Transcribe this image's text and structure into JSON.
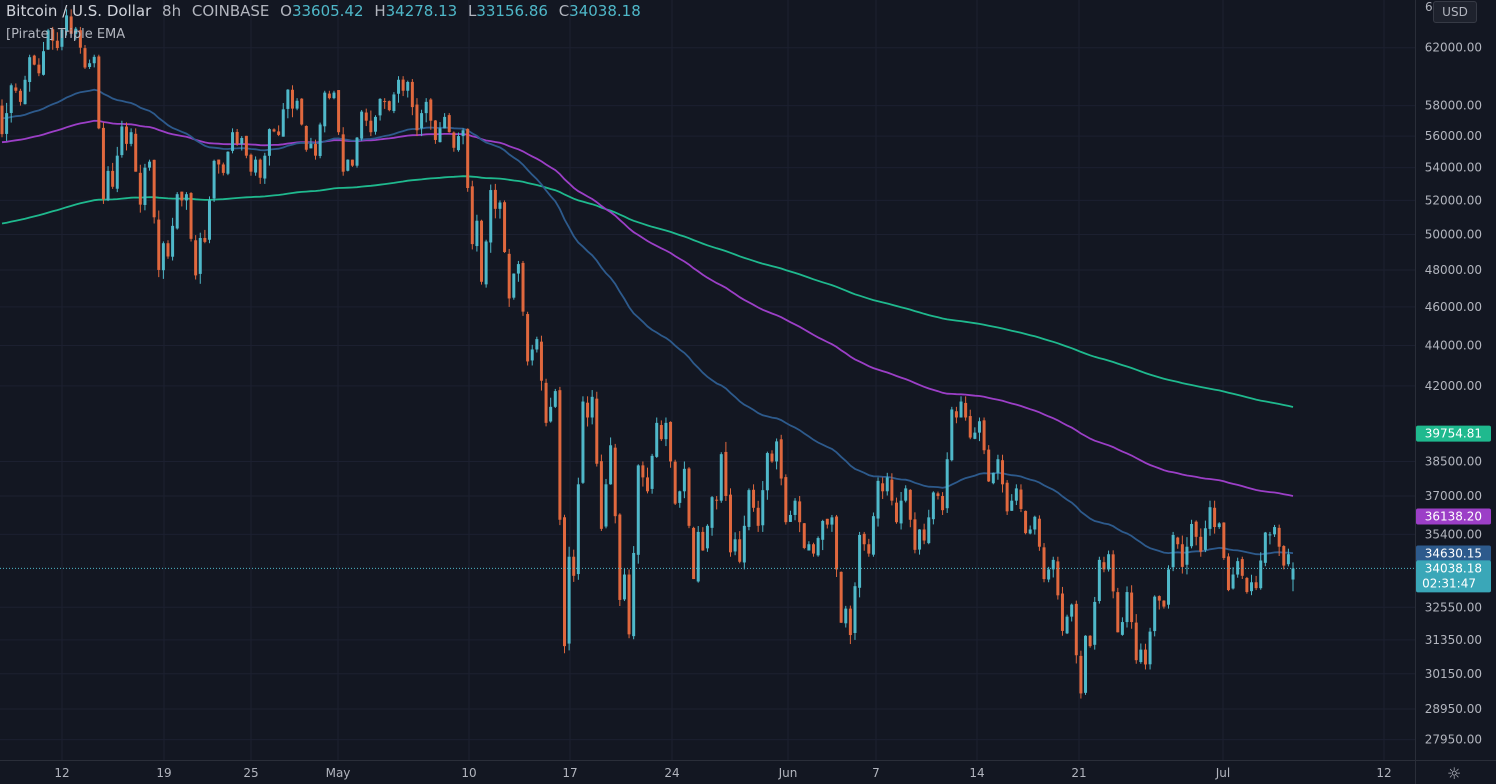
{
  "header": {
    "symbol": "Bitcoin / U.S. Dollar",
    "interval": "8h",
    "exchange": "COINBASE",
    "open_label": "O",
    "open": "33605.42",
    "high_label": "H",
    "high": "34278.13",
    "low_label": "L",
    "low": "33156.86",
    "close_label": "C",
    "close": "34038.18"
  },
  "indicator": {
    "name": "[Pirate] Triple EMA"
  },
  "currency_button": "USD",
  "top_right_label": "6",
  "colors": {
    "background": "#131722",
    "up": "#4fb8c9",
    "down": "#e0683e",
    "ema_fast": "#2d5a8c",
    "ema_mid": "#9c3fc7",
    "ema_slow": "#1fb98e",
    "grid": "#1c2030",
    "text": "#b2b5be"
  },
  "chart_data": {
    "type": "candlestick",
    "yscale": "log",
    "ylim": [
      27300,
      65500
    ],
    "y_ticks": [
      "62000.00",
      "58000.00",
      "56000.00",
      "54000.00",
      "52000.00",
      "50000.00",
      "48000.00",
      "46000.00",
      "44000.00",
      "42000.00",
      "38500.00",
      "37000.00",
      "35400.00",
      "32550.00",
      "31350.00",
      "30150.00",
      "28950.00",
      "27950.00"
    ],
    "x_ticks": [
      "12",
      "19",
      "25",
      "May",
      "10",
      "17",
      "24",
      "Jun",
      "7",
      "14",
      "21",
      "Jul",
      "12"
    ],
    "guide_ohlc": [
      [
        58000,
        59500,
        55500,
        59000
      ],
      [
        59000,
        61500,
        58000,
        60800
      ],
      [
        60800,
        63500,
        60000,
        62500
      ],
      [
        62500,
        64800,
        61800,
        63000
      ],
      [
        63000,
        63500,
        60500,
        60900
      ],
      [
        60900,
        61500,
        51500,
        53800
      ],
      [
        53800,
        57000,
        52500,
        55500
      ],
      [
        55500,
        56500,
        51000,
        54000
      ],
      [
        54000,
        54500,
        47500,
        49500
      ],
      [
        49500,
        52500,
        48500,
        52000
      ],
      [
        52000,
        52500,
        47000,
        49800
      ],
      [
        49800,
        54500,
        49500,
        54200
      ],
      [
        54200,
        56500,
        53500,
        55500
      ],
      [
        55500,
        56000,
        53500,
        54500
      ],
      [
        54500,
        56500,
        53000,
        56300
      ],
      [
        56300,
        59500,
        56000,
        57800
      ],
      [
        57800,
        58500,
        55000,
        55500
      ],
      [
        55500,
        59000,
        54500,
        58500
      ],
      [
        58500,
        59000,
        53500,
        54500
      ],
      [
        54500,
        57800,
        54000,
        57000
      ],
      [
        57000,
        58500,
        56000,
        58300
      ],
      [
        58300,
        60000,
        57500,
        59000
      ],
      [
        59000,
        59800,
        56000,
        57500
      ],
      [
        57500,
        58500,
        55500,
        56500
      ],
      [
        56500,
        57500,
        55000,
        56000
      ],
      [
        56000,
        56500,
        49000,
        50800
      ],
      [
        50800,
        53000,
        46200,
        51500
      ],
      [
        51500,
        52000,
        46000,
        47800
      ],
      [
        47800,
        48500,
        43000,
        43800
      ],
      [
        43800,
        44500,
        40000,
        41000
      ],
      [
        41000,
        42000,
        30000,
        34500
      ],
      [
        34500,
        41500,
        33500,
        40500
      ],
      [
        40500,
        41800,
        35000,
        37500
      ],
      [
        37500,
        39800,
        32500,
        33800
      ],
      [
        33800,
        38500,
        30800,
        37800
      ],
      [
        37800,
        40500,
        37000,
        39500
      ],
      [
        39500,
        40500,
        36500,
        37200
      ],
      [
        37200,
        38500,
        33000,
        35500
      ],
      [
        35500,
        37000,
        34500,
        36800
      ],
      [
        36800,
        39500,
        34500,
        35200
      ],
      [
        35200,
        37500,
        34000,
        36500
      ],
      [
        36500,
        39000,
        35500,
        38500
      ],
      [
        38500,
        39700,
        35800,
        36200
      ],
      [
        36200,
        37000,
        34800,
        35000
      ],
      [
        35000,
        36000,
        34500,
        35800
      ],
      [
        35800,
        36200,
        31800,
        32500
      ],
      [
        32500,
        35500,
        31200,
        35000
      ],
      [
        35000,
        37800,
        34500,
        37200
      ],
      [
        37200,
        38000,
        35600,
        36800
      ],
      [
        36800,
        37500,
        34500,
        35600
      ],
      [
        35600,
        37200,
        35000,
        37000
      ],
      [
        37000,
        41000,
        36200,
        40500
      ],
      [
        40500,
        41500,
        39500,
        39800
      ],
      [
        39800,
        40500,
        37500,
        38000
      ],
      [
        38000,
        38800,
        36200,
        36800
      ],
      [
        36800,
        37500,
        35400,
        35600
      ],
      [
        35600,
        36300,
        33500,
        34000
      ],
      [
        34000,
        34500,
        31500,
        32200
      ],
      [
        32200,
        32800,
        28800,
        31500
      ],
      [
        31500,
        34500,
        31000,
        34000
      ],
      [
        34000,
        34800,
        31500,
        32000
      ],
      [
        32000,
        33500,
        30500,
        31000
      ],
      [
        31000,
        33000,
        30300,
        32800
      ],
      [
        32800,
        35500,
        32500,
        35000
      ],
      [
        35000,
        36000,
        33800,
        35300
      ],
      [
        35300,
        36800,
        34500,
        35700
      ],
      [
        35700,
        35900,
        33000,
        33800
      ],
      [
        33800,
        34500,
        33000,
        33500
      ],
      [
        33500,
        35500,
        33200,
        35400
      ],
      [
        35400,
        35800,
        34000,
        34600
      ],
      [
        33605.42,
        34278.13,
        33156.86,
        34038.18
      ]
    ],
    "ema_fast_last": "34630.15",
    "ema_mid_last": "36138.20",
    "ema_slow_last": "39754.81",
    "last_price": "34038.18",
    "countdown": "02:31:47",
    "ema_slow_start": 50600,
    "ema_mid_start": 55600,
    "ema_fast_start": 57200,
    "ema_slow_alpha": 0.0069,
    "ema_mid_alpha": 0.0138,
    "ema_fast_alpha": 0.0294
  }
}
